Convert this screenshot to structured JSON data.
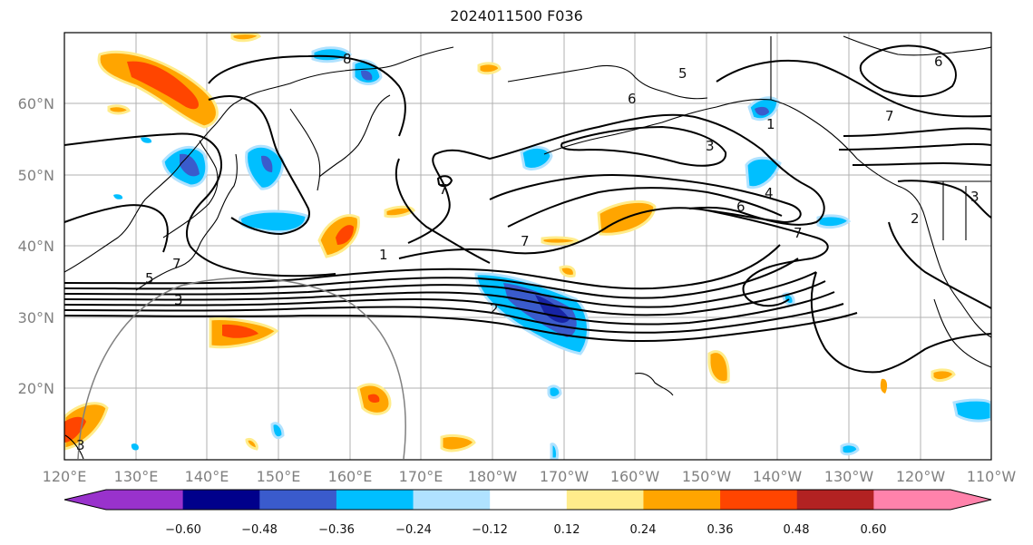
{
  "title": "2024011500 F036",
  "map": {
    "lon_labels": [
      "120°E",
      "130°E",
      "140°E",
      "150°E",
      "160°E",
      "170°E",
      "180°W",
      "170°W",
      "160°W",
      "150°W",
      "140°W",
      "130°W",
      "120°W",
      "110°W"
    ],
    "lat_labels": [
      "60°N",
      "50°N",
      "40°N",
      "30°N",
      "20°N"
    ],
    "contour_labels": [
      "8",
      "6",
      "5",
      "7",
      "6",
      "3",
      "1",
      "4",
      "6",
      "7",
      "3",
      "7",
      "2",
      "1",
      "7",
      "3",
      "5",
      "3",
      "2",
      "7"
    ]
  },
  "colorbar": {
    "colors": [
      "#9932cc",
      "#00008b",
      "#3a5bcc",
      "#00bfff",
      "#b0e2ff",
      "#ffffff",
      "#ffec8b",
      "#ffa500",
      "#ff4500",
      "#b22222",
      "#ff82ab"
    ],
    "tick_labels": [
      "−0.60",
      "−0.48",
      "−0.36",
      "−0.24",
      "−0.12",
      "0.12",
      "0.24",
      "0.36",
      "0.48",
      "0.60"
    ]
  }
}
